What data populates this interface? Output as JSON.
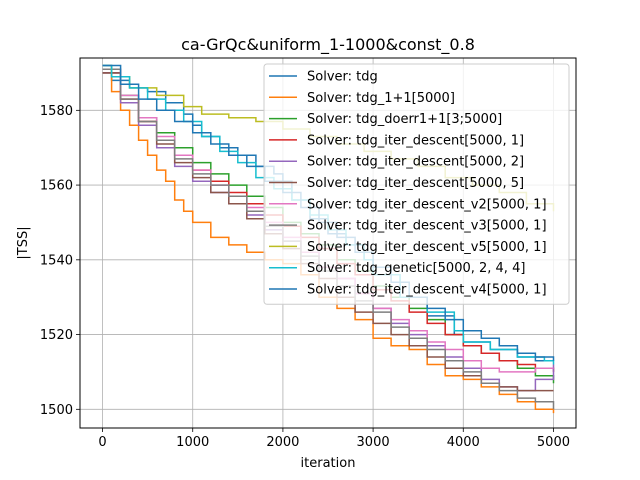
{
  "chart_data": {
    "type": "line",
    "title": "ca-GrQc&uniform_1-1000&const_0.8",
    "xlabel": "iteration",
    "ylabel": "|TSS|",
    "xlim": [
      -250,
      5250
    ],
    "ylim": [
      1495,
      1594
    ],
    "xticks": [
      0,
      1000,
      2000,
      3000,
      4000,
      5000
    ],
    "yticks": [
      1500,
      1520,
      1540,
      1560,
      1580
    ],
    "grid": true,
    "legend": "top-right",
    "series": [
      {
        "name": "Solver: tdg",
        "color": "#1f77b4",
        "x": [
          0,
          100,
          300,
          500,
          700,
          900,
          1000,
          1100,
          1300,
          1500,
          1700,
          1900,
          2000,
          2100,
          2300,
          2500,
          2700,
          2900,
          3000,
          3300,
          3600,
          3900,
          4000,
          4300,
          4600,
          4800,
          5000
        ],
        "y": [
          1592,
          1588,
          1586,
          1585,
          1582,
          1579,
          1576,
          1573,
          1570,
          1568,
          1565,
          1563,
          1561,
          1556,
          1551,
          1547,
          1544,
          1540,
          1536,
          1530,
          1525,
          1520,
          1518,
          1516,
          1514,
          1513,
          1513
        ]
      },
      {
        "name": "Solver: tdg_1+1[5000]",
        "color": "#ff7f0e",
        "x": [
          0,
          100,
          200,
          300,
          400,
          500,
          600,
          700,
          800,
          900,
          1000,
          1200,
          1400,
          1600,
          1800,
          2000,
          2200,
          2400,
          2600,
          2800,
          3000,
          3200,
          3400,
          3600,
          3800,
          4000,
          4200,
          4400,
          4600,
          4800,
          5000
        ],
        "y": [
          1591,
          1585,
          1580,
          1576,
          1572,
          1568,
          1564,
          1561,
          1556,
          1553,
          1550,
          1546,
          1544,
          1542,
          1540,
          1539,
          1536,
          1530,
          1527,
          1524,
          1519,
          1517,
          1516,
          1512,
          1509,
          1508,
          1506,
          1504,
          1502,
          1500,
          1499
        ]
      },
      {
        "name": "Solver: tdg_doerr1+1[3;5000]",
        "color": "#2ca02c",
        "x": [
          0,
          200,
          400,
          600,
          800,
          1000,
          1200,
          1400,
          1600,
          1800,
          2000,
          2200,
          2400,
          2600,
          2800,
          3000,
          3200,
          3400,
          3600,
          3800,
          4000,
          4200,
          4400,
          4600,
          4800,
          5000
        ],
        "y": [
          1590,
          1584,
          1578,
          1574,
          1570,
          1566,
          1563,
          1560,
          1557,
          1554,
          1550,
          1547,
          1544,
          1540,
          1537,
          1533,
          1530,
          1527,
          1524,
          1520,
          1517,
          1515,
          1513,
          1511,
          1509,
          1507
        ]
      },
      {
        "name": "Solver: tdg_iter_descent[5000, 1]",
        "color": "#d62728",
        "x": [
          0,
          200,
          400,
          600,
          800,
          1000,
          1200,
          1400,
          1600,
          1800,
          2000,
          2200,
          2400,
          2600,
          2800,
          3000,
          3200,
          3400,
          3600,
          3800,
          4000,
          4200,
          4400,
          4600,
          4800,
          5000
        ],
        "y": [
          1590,
          1583,
          1577,
          1572,
          1568,
          1564,
          1561,
          1558,
          1555,
          1552,
          1549,
          1546,
          1543,
          1539,
          1536,
          1532,
          1529,
          1526,
          1523,
          1520,
          1517,
          1515,
          1513,
          1512,
          1511,
          1510
        ]
      },
      {
        "name": "Solver: tdg_iter_descent[5000, 2]",
        "color": "#9467bd",
        "x": [
          0,
          200,
          400,
          600,
          800,
          1000,
          1200,
          1400,
          1600,
          1800,
          2000,
          2200,
          2400,
          2600,
          2800,
          3000,
          3200,
          3400,
          3600,
          3800,
          4000,
          4200,
          4400,
          4600,
          4800,
          5000
        ],
        "y": [
          1590,
          1582,
          1576,
          1570,
          1565,
          1561,
          1558,
          1555,
          1552,
          1548,
          1545,
          1542,
          1538,
          1535,
          1531,
          1527,
          1523,
          1520,
          1517,
          1514,
          1511,
          1508,
          1506,
          1505,
          1508,
          1512
        ]
      },
      {
        "name": "Solver: tdg_iter_descent[5000, 5]",
        "color": "#8c564b",
        "x": [
          0,
          200,
          400,
          600,
          800,
          1000,
          1200,
          1400,
          1600,
          1800,
          2000,
          2200,
          2400,
          2600,
          2800,
          3000,
          3200,
          3400,
          3600,
          3800,
          4000,
          4200,
          4400,
          4600,
          4800,
          5000
        ],
        "y": [
          1590,
          1583,
          1577,
          1571,
          1566,
          1562,
          1558,
          1555,
          1551,
          1547,
          1543,
          1539,
          1535,
          1530,
          1526,
          1523,
          1520,
          1517,
          1514,
          1511,
          1509,
          1507,
          1506,
          1505,
          1505,
          1505
        ]
      },
      {
        "name": "Solver: tdg_iter_descent_v2[5000, 1]",
        "color": "#e377c2",
        "x": [
          0,
          200,
          400,
          600,
          800,
          1000,
          1200,
          1400,
          1600,
          1800,
          2000,
          2200,
          2400,
          2600,
          2800,
          3000,
          3200,
          3400,
          3600,
          3800,
          4000,
          4200,
          4400,
          4600,
          4800,
          5000
        ],
        "y": [
          1591,
          1584,
          1578,
          1573,
          1568,
          1564,
          1560,
          1557,
          1554,
          1550,
          1546,
          1542,
          1538,
          1535,
          1531,
          1527,
          1524,
          1521,
          1518,
          1516,
          1513,
          1511,
          1510,
          1510,
          1511,
          1511
        ]
      },
      {
        "name": "Solver: tdg_iter_descent_v3[5000, 1]",
        "color": "#7f7f7f",
        "x": [
          0,
          200,
          400,
          600,
          800,
          1000,
          1200,
          1400,
          1600,
          1800,
          2000,
          2200,
          2400,
          2600,
          2800,
          3000,
          3200,
          3400,
          3600,
          3800,
          4000,
          4200,
          4400,
          4600,
          4800,
          5000
        ],
        "y": [
          1591,
          1583,
          1577,
          1572,
          1567,
          1563,
          1560,
          1557,
          1553,
          1549,
          1545,
          1541,
          1537,
          1533,
          1529,
          1526,
          1522,
          1519,
          1516,
          1513,
          1510,
          1507,
          1505,
          1503,
          1502,
          1500
        ]
      },
      {
        "name": "Solver: tdg_iter_descent_v5[5000, 1]",
        "color": "#bcbd22",
        "x": [
          0,
          100,
          300,
          600,
          900,
          1100,
          1400,
          1700,
          2000,
          2300,
          2600,
          2900,
          3200,
          3500,
          3800,
          4100,
          4400,
          4700,
          5000
        ],
        "y": [
          1592,
          1589,
          1586,
          1584,
          1581,
          1579,
          1578,
          1577,
          1575,
          1573,
          1571,
          1569,
          1567,
          1565,
          1562,
          1560,
          1558,
          1555,
          1553
        ]
      },
      {
        "name": "Solver: tdg_genetic[5000, 2, 4, 4]",
        "color": "#17becf",
        "x": [
          0,
          100,
          300,
          500,
          700,
          900,
          1100,
          1300,
          1500,
          1700,
          1900,
          2100,
          2300,
          2500,
          2700,
          2900,
          3000,
          3300,
          3600,
          3900,
          4000,
          4300,
          4600,
          4900,
          5000
        ],
        "y": [
          1592,
          1589,
          1586,
          1583,
          1580,
          1577,
          1573,
          1569,
          1566,
          1562,
          1559,
          1556,
          1552,
          1548,
          1544,
          1540,
          1536,
          1530,
          1526,
          1521,
          1518,
          1516,
          1514,
          1513,
          1512
        ]
      },
      {
        "name": "Solver: tdg_iter_descent_v4[5000, 1]",
        "color": "#1f77b4",
        "x": [
          0,
          200,
          400,
          600,
          800,
          1000,
          1200,
          1400,
          1600,
          1800,
          2000,
          2200,
          2400,
          2600,
          2800,
          3000,
          3200,
          3400,
          3600,
          3800,
          4000,
          4200,
          4400,
          4600,
          4800,
          5000
        ],
        "y": [
          1592,
          1587,
          1583,
          1580,
          1577,
          1574,
          1571,
          1568,
          1565,
          1561,
          1558,
          1554,
          1550,
          1546,
          1542,
          1538,
          1534,
          1530,
          1527,
          1524,
          1521,
          1519,
          1517,
          1515,
          1514,
          1513
        ]
      }
    ]
  }
}
